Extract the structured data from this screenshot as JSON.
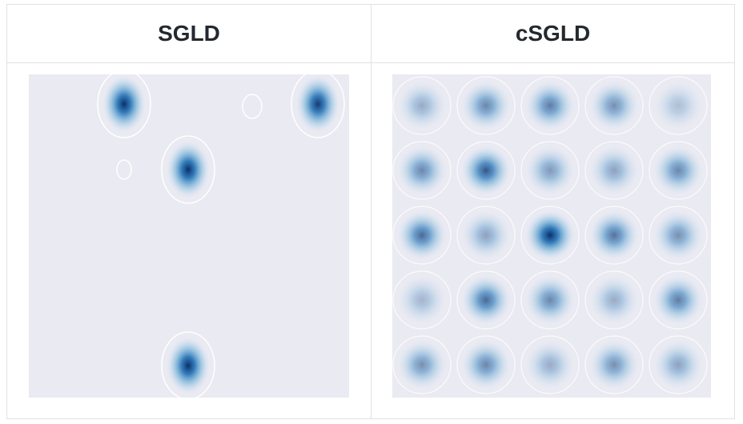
{
  "table": {
    "header": [
      "SGLD",
      "cSGLD"
    ]
  }
}
